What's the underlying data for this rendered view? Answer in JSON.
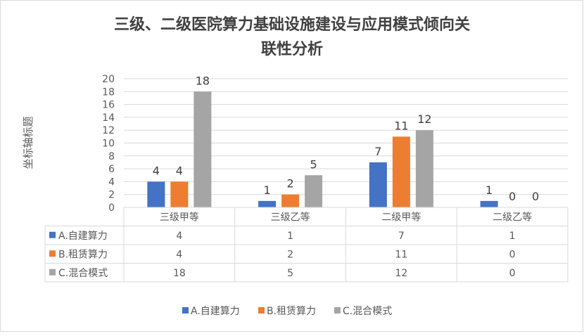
{
  "chart_data": {
    "type": "bar",
    "title": "三级、二级医院算力基础设施建设与应用模式倾向关联性分析",
    "title_lines": [
      "三级、二级医院算力基础设施建设与应用模式倾向关",
      "联性分析"
    ],
    "xlabel": "",
    "ylabel": "坐标轴标题",
    "ylim": [
      0,
      20
    ],
    "yticks": [
      0,
      2,
      4,
      6,
      8,
      10,
      12,
      14,
      16,
      18,
      20
    ],
    "categories": [
      "三级甲等",
      "三级乙等",
      "二级甲等",
      "二级乙等"
    ],
    "series": [
      {
        "name": "A.自建算力",
        "color": "#4472c4",
        "values": [
          4,
          1,
          7,
          1
        ]
      },
      {
        "name": "B.租赁算力",
        "color": "#ed7d31",
        "values": [
          4,
          2,
          11,
          0
        ]
      },
      {
        "name": "C.混合模式",
        "color": "#a5a5a5",
        "values": [
          18,
          5,
          12,
          0
        ]
      }
    ],
    "grid": true,
    "data_table": true,
    "legend_position": "bottom"
  }
}
